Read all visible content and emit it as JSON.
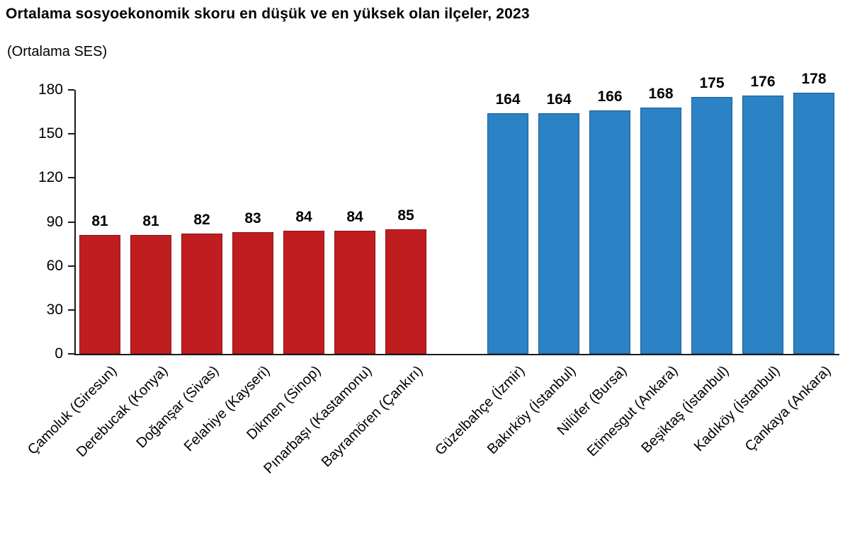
{
  "page": {
    "background": "#ffffff",
    "text_color": "#000000",
    "axis_color": "#1a1a1a"
  },
  "chart_data": {
    "type": "bar",
    "title": "Ortalama sosyoekonomik skoru en düşük ve en yüksek olan ilçeler, 2023",
    "subtitle": "(Ortalama SES)",
    "xlabel": "",
    "ylabel": "",
    "ylim": [
      0,
      180
    ],
    "yticks": [
      0,
      30,
      60,
      90,
      120,
      150,
      180
    ],
    "grid": false,
    "legend_position": "none",
    "bar_value_labels_shown": true,
    "category_label_rotation_deg": 45,
    "group_gap_slots": 1,
    "groups": [
      {
        "name": "en-dusuk-skorlu-ilceler",
        "color": "#C01D20",
        "border_color": "#8e1215",
        "bars": [
          {
            "label": "Çamoluk (Giresun)",
            "value": 81
          },
          {
            "label": "Derebucak (Konya)",
            "value": 81
          },
          {
            "label": "Doğanşar (Sivas)",
            "value": 82
          },
          {
            "label": "Felahiye (Kayseri)",
            "value": 83
          },
          {
            "label": "Dikmen (Sinop)",
            "value": 84
          },
          {
            "label": "Pınarbaşı (Kastamonu)",
            "value": 84
          },
          {
            "label": "Bayramören (Çankırı)",
            "value": 85
          }
        ]
      },
      {
        "name": "en-yuksek-skorlu-ilceler",
        "color": "#2B82C4",
        "border_color": "#1c5d92",
        "bars": [
          {
            "label": "Güzelbahçe (İzmir)",
            "value": 164
          },
          {
            "label": "Bakırköy (İstanbul)",
            "value": 164
          },
          {
            "label": "Nilüfer (Bursa)",
            "value": 166
          },
          {
            "label": "Etimesgut (Ankara)",
            "value": 168
          },
          {
            "label": "Beşiktaş (İstanbul)",
            "value": 175
          },
          {
            "label": "Kadıköy (İstanbul)",
            "value": 176
          },
          {
            "label": "Çankaya (Ankara)",
            "value": 178
          }
        ]
      }
    ]
  }
}
